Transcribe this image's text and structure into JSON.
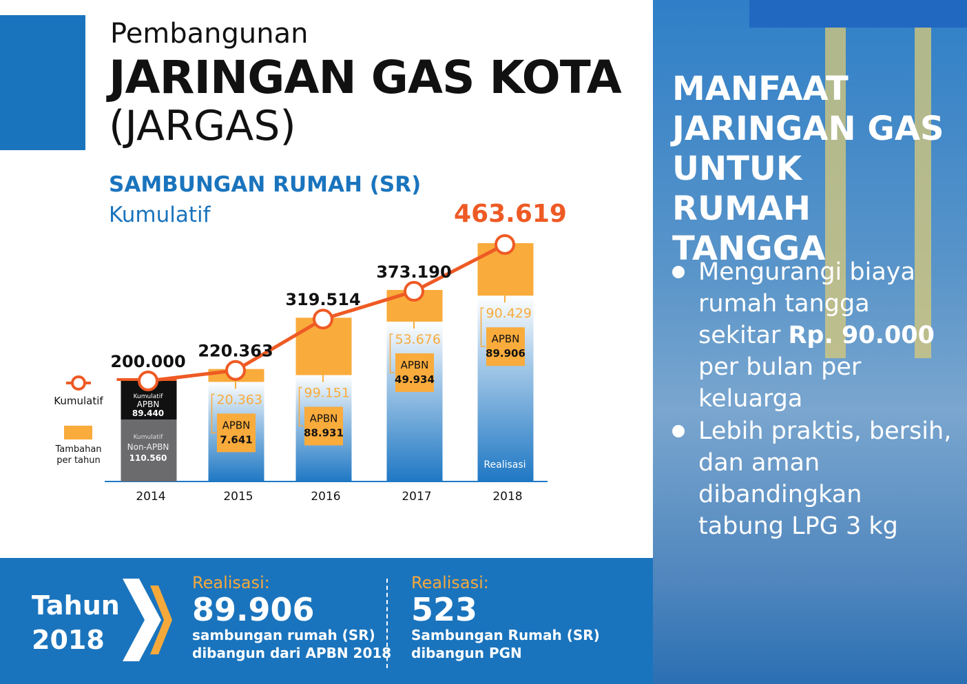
{
  "title": {
    "line1": "Pembangunan",
    "line2": "JARINGAN GAS KOTA",
    "line3": "(JARGAS)"
  },
  "subtitle": {
    "line1": "SAMBUNGAN RUMAH (SR)",
    "line2": "Kumulatif"
  },
  "legend": {
    "kumulatif": "Kumulatif",
    "tambahan": "Tambahan per tahun"
  },
  "chart_data": {
    "type": "bar",
    "title": "Sambungan Rumah (SR) Kumulatif",
    "categories": [
      "2014",
      "2015",
      "2016",
      "2017",
      "2018"
    ],
    "series": [
      {
        "name": "Kumulatif",
        "values": [
          200000,
          220363,
          319514,
          373190,
          463619
        ],
        "labels": [
          "200.000",
          "220.363",
          "319.514",
          "373.190",
          "463.619"
        ]
      },
      {
        "name": "Tambahan per tahun",
        "values": [
          null,
          20363,
          99151,
          53676,
          90429
        ],
        "labels": [
          "",
          "20.363",
          "99.151",
          "53.676",
          "90.429"
        ]
      },
      {
        "name": "APBN",
        "values": [
          89440,
          7641,
          88931,
          49934,
          89906
        ],
        "labels": [
          "89.440",
          "7.641",
          "88.931",
          "49.934",
          "89.906"
        ]
      }
    ],
    "base_2014": {
      "apbn_title": "Kumulatif",
      "apbn_name": "APBN",
      "apbn_value": "89.440",
      "non_title": "Kumulatif",
      "non_name": "Non-APBN",
      "non_value": "110.560"
    },
    "apbn_label": "APBN",
    "realisasi_label": "Realisasi",
    "colors": {
      "line": "#ee5a24",
      "orange": "#f9ab3c",
      "blue": "#1f78c4",
      "black": "#111111",
      "gray": "#6b6b6d"
    }
  },
  "right": {
    "heading": "MANFAAT JARINGAN GAS UNTUK RUMAH TANGGA",
    "b1a": "Mengurangi biaya rumah tangga sekitar ",
    "b1b": "Rp. 90.000",
    "b1c": " per bulan per keluarga",
    "b2": "Lebih praktis, bersih, dan aman dibandingkan tabung LPG 3 kg"
  },
  "bottom": {
    "tahun": "Tahun",
    "year": "2018",
    "r1": {
      "label": "Realisasi:",
      "value": "89.906",
      "desc1": "sambungan rumah (SR)",
      "desc2": "dibangun dari APBN 2018"
    },
    "r2": {
      "label": "Realisasi:",
      "value": "523",
      "desc1": "Sambungan Rumah (SR)",
      "desc2": "dibangun PGN"
    }
  }
}
